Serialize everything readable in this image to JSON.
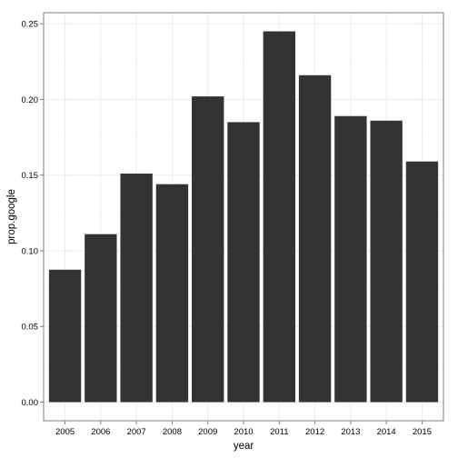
{
  "chart_data": {
    "type": "bar",
    "xlabel": "year",
    "ylabel": "prop.google",
    "categories": [
      "2005",
      "2006",
      "2007",
      "2008",
      "2009",
      "2010",
      "2011",
      "2012",
      "2013",
      "2014",
      "2015"
    ],
    "values": [
      0.0875,
      0.111,
      0.151,
      0.144,
      0.202,
      0.185,
      0.245,
      0.216,
      0.189,
      0.186,
      0.159
    ],
    "ylim": [
      -0.0123,
      0.2573
    ],
    "yticks": [
      0.0,
      0.05,
      0.1,
      0.15,
      0.2,
      0.25
    ],
    "ytick_labels": [
      "0.00",
      "0.05",
      "0.10",
      "0.15",
      "0.20",
      "0.25"
    ],
    "grid": true,
    "colors": {
      "bar": "#333333",
      "panel_border": "#7f7f7f",
      "grid_major": "#ebebeb",
      "grid_minor": "#f5f5f5",
      "tick": "#7f7f7f"
    }
  }
}
